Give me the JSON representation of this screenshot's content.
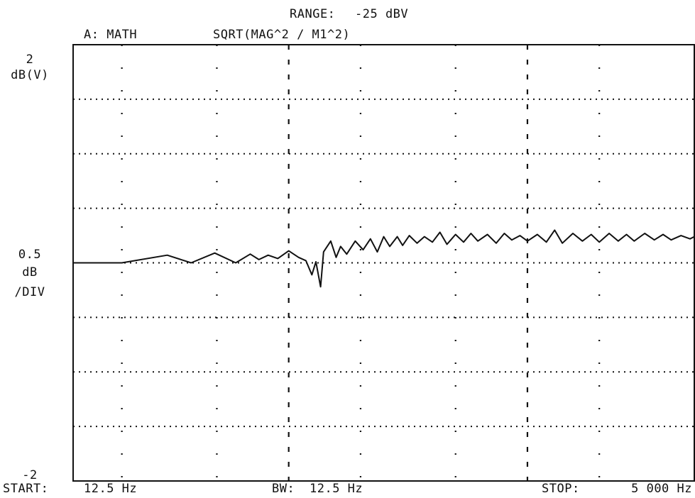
{
  "header": {
    "range_label": "RANGE:",
    "range_value": "-25 dBV",
    "trace_label": "A: MATH",
    "math_formula": "SQRT(MAG^2 / M1^2)"
  },
  "y_axis": {
    "top_value": "2",
    "top_unit": "dB(V)",
    "scale_value": "0.5",
    "scale_unit": "dB",
    "scale_per": "/DIV",
    "bottom_value": "-2"
  },
  "footer": {
    "start_label": "START:",
    "start_value": "12.5 Hz",
    "bw_label": "BW:",
    "bw_value": "12.5 Hz",
    "stop_label": "STOP:",
    "stop_value": "5 000 Hz"
  },
  "chart_data": {
    "type": "line",
    "xlabel": "",
    "ylabel": "dB(V)",
    "xlim": [
      12.5,
      5000
    ],
    "ylim": [
      -2,
      2
    ],
    "x_scale": "log",
    "y_divisions": 8,
    "grid": "dotted",
    "series": [
      {
        "color": "#111111",
        "x": [
          12.5,
          20,
          31,
          39,
          49,
          60,
          69,
          75,
          82,
          90,
          100,
          110,
          118,
          125,
          130,
          136,
          140,
          150,
          158,
          165,
          175,
          190,
          205,
          220,
          235,
          250,
          265,
          285,
          300,
          320,
          345,
          370,
          400,
          430,
          460,
          500,
          540,
          580,
          620,
          680,
          740,
          800,
          860,
          930,
          1000,
          1100,
          1200,
          1300,
          1400,
          1550,
          1700,
          1850,
          2000,
          2200,
          2400,
          2600,
          2800,
          3100,
          3400,
          3700,
          4000,
          4400,
          4800,
          5000
        ],
        "y": [
          0.0,
          0.0,
          0.07,
          0.0,
          0.09,
          0.0,
          0.08,
          0.03,
          0.07,
          0.04,
          0.11,
          0.05,
          0.02,
          -0.11,
          0.01,
          -0.22,
          0.1,
          0.2,
          0.05,
          0.15,
          0.08,
          0.2,
          0.12,
          0.22,
          0.1,
          0.24,
          0.15,
          0.24,
          0.16,
          0.25,
          0.18,
          0.24,
          0.19,
          0.28,
          0.17,
          0.26,
          0.19,
          0.27,
          0.2,
          0.26,
          0.18,
          0.27,
          0.21,
          0.25,
          0.2,
          0.26,
          0.19,
          0.3,
          0.18,
          0.27,
          0.2,
          0.26,
          0.19,
          0.27,
          0.2,
          0.26,
          0.2,
          0.27,
          0.21,
          0.26,
          0.21,
          0.25,
          0.22,
          0.24
        ]
      }
    ]
  }
}
